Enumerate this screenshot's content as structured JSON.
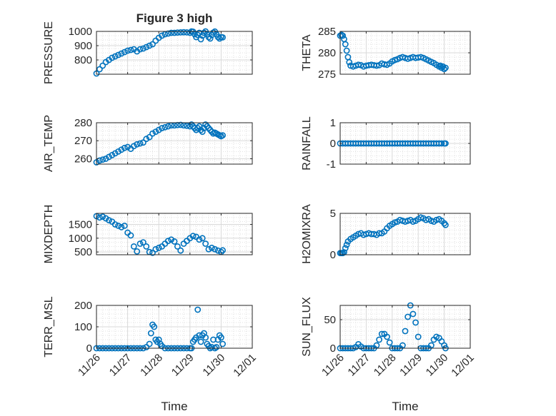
{
  "figure": {
    "title": "Figure 3 high",
    "xlabel": "Time",
    "x_ticks": [
      "11/26",
      "11/27",
      "11/28",
      "11/29",
      "11/30",
      "12/01"
    ],
    "colors": {
      "marker": "#0072BD",
      "axes": "#262626",
      "grid": "#d9d9d9",
      "background": "#ffffff"
    }
  },
  "chart_data": [
    {
      "type": "scatter",
      "name": "pressure",
      "ylabel": "PRESSURE",
      "xlim": [
        0,
        5
      ],
      "ylim": [
        700,
        1000
      ],
      "yticks": [
        800,
        900,
        1000
      ],
      "grid": true,
      "minor_grid": true,
      "x": [
        0.0,
        0.1,
        0.2,
        0.3,
        0.4,
        0.5,
        0.6,
        0.7,
        0.8,
        0.9,
        1.0,
        1.1,
        1.2,
        1.3,
        1.4,
        1.5,
        1.6,
        1.7,
        1.8,
        1.9,
        2.0,
        2.1,
        2.2,
        2.3,
        2.4,
        2.5,
        2.6,
        2.7,
        2.8,
        2.9,
        3.0,
        3.05,
        3.1,
        3.15,
        3.2,
        3.25,
        3.3,
        3.35,
        3.4,
        3.45,
        3.5,
        3.55,
        3.6,
        3.65,
        3.7,
        3.75,
        3.8,
        3.85,
        3.9,
        3.95,
        4.0,
        4.05
      ],
      "y": [
        705,
        735,
        760,
        785,
        800,
        815,
        825,
        835,
        845,
        855,
        865,
        870,
        875,
        860,
        875,
        880,
        890,
        900,
        910,
        935,
        955,
        970,
        980,
        985,
        990,
        990,
        992,
        993,
        994,
        993,
        990,
        1000,
        998,
        980,
        960,
        975,
        990,
        945,
        970,
        990,
        1000,
        980,
        960,
        950,
        975,
        992,
        999,
        980,
        960,
        950,
        960,
        958
      ]
    },
    {
      "type": "scatter",
      "name": "theta",
      "ylabel": "THETA",
      "xlim": [
        0,
        5
      ],
      "ylim": [
        275,
        285
      ],
      "yticks": [
        275,
        280,
        285
      ],
      "grid": true,
      "minor_grid": true,
      "x": [
        0.0,
        0.05,
        0.1,
        0.15,
        0.2,
        0.25,
        0.3,
        0.35,
        0.4,
        0.5,
        0.6,
        0.7,
        0.8,
        0.9,
        1.0,
        1.1,
        1.2,
        1.3,
        1.4,
        1.5,
        1.6,
        1.7,
        1.8,
        1.9,
        2.0,
        2.1,
        2.2,
        2.3,
        2.4,
        2.5,
        2.6,
        2.7,
        2.8,
        2.9,
        3.0,
        3.1,
        3.2,
        3.3,
        3.4,
        3.5,
        3.6,
        3.7,
        3.8,
        3.85,
        3.9,
        3.95,
        4.0,
        4.05
      ],
      "y": [
        284.0,
        284.2,
        284.0,
        283.2,
        282.0,
        280.5,
        279.0,
        277.8,
        277.0,
        276.8,
        277.0,
        277.2,
        277.1,
        276.8,
        277.0,
        277.1,
        277.2,
        277.1,
        277.0,
        277.1,
        277.5,
        277.3,
        277.2,
        277.5,
        278.0,
        278.3,
        278.5,
        278.8,
        279.0,
        278.8,
        278.6,
        278.8,
        279.0,
        278.8,
        278.9,
        279.0,
        278.8,
        278.5,
        278.2,
        277.9,
        277.6,
        277.2,
        276.8,
        277.0,
        276.5,
        276.8,
        276.2,
        276.5
      ]
    },
    {
      "type": "scatter",
      "name": "air_temp",
      "ylabel": "AIR_TEMP",
      "xlim": [
        0,
        5
      ],
      "ylim": [
        257,
        280
      ],
      "yticks": [
        260,
        270,
        280
      ],
      "grid": true,
      "minor_grid": true,
      "x": [
        0.0,
        0.1,
        0.2,
        0.3,
        0.4,
        0.5,
        0.6,
        0.7,
        0.8,
        0.9,
        1.0,
        1.1,
        1.2,
        1.3,
        1.4,
        1.5,
        1.6,
        1.7,
        1.8,
        1.9,
        2.0,
        2.1,
        2.2,
        2.3,
        2.4,
        2.5,
        2.6,
        2.7,
        2.8,
        2.9,
        3.0,
        3.05,
        3.1,
        3.15,
        3.2,
        3.25,
        3.3,
        3.35,
        3.4,
        3.45,
        3.5,
        3.55,
        3.6,
        3.65,
        3.7,
        3.75,
        3.8,
        3.85,
        3.9,
        3.95,
        4.0,
        4.05
      ],
      "y": [
        258,
        259,
        259.5,
        260,
        261,
        262,
        263,
        264,
        265,
        266,
        266.5,
        265.5,
        267,
        268,
        268.5,
        269,
        271,
        272,
        274,
        275,
        276,
        277,
        277.5,
        278,
        278.5,
        278.5,
        278.7,
        278.8,
        278.5,
        278.3,
        278,
        279,
        278,
        277,
        276,
        277,
        278,
        276,
        275,
        277,
        279,
        278,
        277,
        276,
        275,
        274,
        274.5,
        274,
        273.5,
        273,
        272.5,
        273
      ]
    },
    {
      "type": "scatter",
      "name": "rainfall",
      "ylabel": "RAINFALL",
      "xlim": [
        0,
        5
      ],
      "ylim": [
        -1,
        1
      ],
      "yticks": [
        -1,
        0,
        1
      ],
      "grid": true,
      "minor_grid": true,
      "x": [
        0.0,
        0.1,
        0.2,
        0.3,
        0.4,
        0.5,
        0.6,
        0.7,
        0.8,
        0.9,
        1.0,
        1.1,
        1.2,
        1.3,
        1.4,
        1.5,
        1.6,
        1.7,
        1.8,
        1.9,
        2.0,
        2.1,
        2.2,
        2.3,
        2.4,
        2.5,
        2.6,
        2.7,
        2.8,
        2.9,
        3.0,
        3.1,
        3.2,
        3.3,
        3.4,
        3.5,
        3.6,
        3.7,
        3.8,
        3.9,
        4.0,
        4.05
      ],
      "y": [
        0,
        0,
        0,
        0,
        0,
        0,
        0,
        0,
        0,
        0,
        0,
        0,
        0,
        0,
        0,
        0,
        0,
        0,
        0,
        0,
        0,
        0,
        0,
        0,
        0,
        0,
        0,
        0,
        0,
        0,
        0,
        0,
        0,
        0,
        0,
        0,
        0,
        0,
        0,
        0,
        0,
        0
      ]
    },
    {
      "type": "scatter",
      "name": "mixdepth",
      "ylabel": "MIXDEPTH",
      "xlim": [
        0,
        5
      ],
      "ylim": [
        400,
        1900
      ],
      "yticks": [
        500,
        1000,
        1500
      ],
      "grid": true,
      "minor_grid": true,
      "x": [
        0.0,
        0.1,
        0.2,
        0.3,
        0.4,
        0.5,
        0.6,
        0.7,
        0.8,
        0.9,
        1.0,
        1.1,
        1.2,
        1.3,
        1.4,
        1.5,
        1.6,
        1.7,
        1.8,
        1.9,
        2.0,
        2.1,
        2.2,
        2.3,
        2.4,
        2.5,
        2.6,
        2.7,
        2.8,
        2.9,
        3.0,
        3.1,
        3.2,
        3.3,
        3.4,
        3.5,
        3.6,
        3.7,
        3.8,
        3.9,
        4.0,
        4.05
      ],
      "y": [
        1800,
        1750,
        1780,
        1720,
        1650,
        1600,
        1500,
        1450,
        1400,
        1450,
        1200,
        1100,
        700,
        520,
        800,
        850,
        700,
        500,
        470,
        600,
        650,
        700,
        800,
        900,
        950,
        880,
        700,
        550,
        800,
        900,
        1000,
        1080,
        1050,
        950,
        1000,
        800,
        600,
        650,
        600,
        550,
        500,
        560
      ]
    },
    {
      "type": "scatter",
      "name": "h2omixra",
      "ylabel": "H2OMIXRA",
      "xlim": [
        0,
        5
      ],
      "ylim": [
        0,
        5
      ],
      "yticks": [
        0,
        5
      ],
      "grid": true,
      "minor_grid": true,
      "x": [
        0.0,
        0.05,
        0.1,
        0.15,
        0.2,
        0.25,
        0.3,
        0.4,
        0.5,
        0.6,
        0.7,
        0.8,
        0.9,
        1.0,
        1.1,
        1.2,
        1.3,
        1.4,
        1.5,
        1.6,
        1.7,
        1.8,
        1.9,
        2.0,
        2.1,
        2.2,
        2.3,
        2.4,
        2.5,
        2.6,
        2.7,
        2.8,
        2.9,
        3.0,
        3.1,
        3.2,
        3.3,
        3.4,
        3.5,
        3.6,
        3.7,
        3.8,
        3.9,
        4.0,
        4.05
      ],
      "y": [
        0.2,
        0.2,
        0.2,
        0.3,
        0.8,
        1.2,
        1.6,
        1.9,
        2.1,
        2.3,
        2.5,
        2.6,
        2.4,
        2.5,
        2.6,
        2.5,
        2.5,
        2.4,
        2.6,
        2.6,
        2.8,
        3.2,
        3.5,
        3.7,
        3.9,
        4.0,
        4.2,
        4.1,
        4.0,
        4.1,
        4.2,
        4.0,
        4.1,
        4.3,
        4.5,
        4.4,
        4.2,
        4.3,
        4.1,
        4.0,
        4.2,
        4.3,
        4.1,
        3.8,
        3.6
      ]
    },
    {
      "type": "scatter",
      "name": "terr_msl",
      "ylabel": "TERR_MSL",
      "xlim": [
        0,
        5
      ],
      "ylim": [
        0,
        200
      ],
      "yticks": [
        0,
        100,
        200
      ],
      "grid": true,
      "minor_grid": true,
      "x": [
        0.0,
        0.1,
        0.2,
        0.3,
        0.4,
        0.5,
        0.6,
        0.7,
        0.8,
        0.9,
        1.0,
        1.1,
        1.2,
        1.3,
        1.4,
        1.5,
        1.6,
        1.7,
        1.75,
        1.8,
        1.85,
        1.9,
        1.95,
        2.0,
        2.05,
        2.1,
        2.2,
        2.3,
        2.4,
        2.5,
        2.6,
        2.7,
        2.8,
        2.9,
        3.0,
        3.05,
        3.1,
        3.15,
        3.2,
        3.25,
        3.3,
        3.35,
        3.4,
        3.45,
        3.5,
        3.55,
        3.6,
        3.65,
        3.7,
        3.75,
        3.8,
        3.85,
        3.9,
        3.95,
        4.0,
        4.05
      ],
      "y": [
        0,
        0,
        0,
        0,
        0,
        0,
        0,
        0,
        0,
        0,
        0,
        0,
        0,
        0,
        0,
        0,
        5,
        20,
        70,
        110,
        100,
        40,
        30,
        40,
        20,
        10,
        0,
        0,
        0,
        0,
        0,
        0,
        0,
        0,
        0,
        0,
        30,
        40,
        50,
        180,
        60,
        30,
        60,
        70,
        50,
        20,
        10,
        0,
        5,
        40,
        0,
        5,
        40,
        60,
        50,
        20
      ]
    },
    {
      "type": "scatter",
      "name": "sun_flux",
      "ylabel": "SUN_FLUX",
      "xlim": [
        0,
        5
      ],
      "ylim": [
        0,
        75
      ],
      "yticks": [
        0,
        50
      ],
      "grid": true,
      "minor_grid": true,
      "x": [
        0.0,
        0.1,
        0.2,
        0.3,
        0.4,
        0.5,
        0.6,
        0.7,
        0.8,
        0.9,
        1.0,
        1.1,
        1.2,
        1.3,
        1.4,
        1.5,
        1.6,
        1.7,
        1.8,
        1.9,
        2.0,
        2.1,
        2.2,
        2.3,
        2.4,
        2.5,
        2.6,
        2.7,
        2.8,
        2.9,
        3.0,
        3.1,
        3.2,
        3.3,
        3.4,
        3.5,
        3.6,
        3.7,
        3.8,
        3.9,
        4.0,
        4.05
      ],
      "y": [
        0,
        0,
        0,
        0,
        0,
        0,
        2,
        7,
        3,
        0,
        0,
        0,
        0,
        0,
        5,
        15,
        25,
        25,
        20,
        10,
        0,
        0,
        0,
        0,
        5,
        30,
        55,
        75,
        60,
        45,
        20,
        0,
        0,
        0,
        0,
        5,
        15,
        20,
        18,
        12,
        5,
        0
      ]
    }
  ]
}
